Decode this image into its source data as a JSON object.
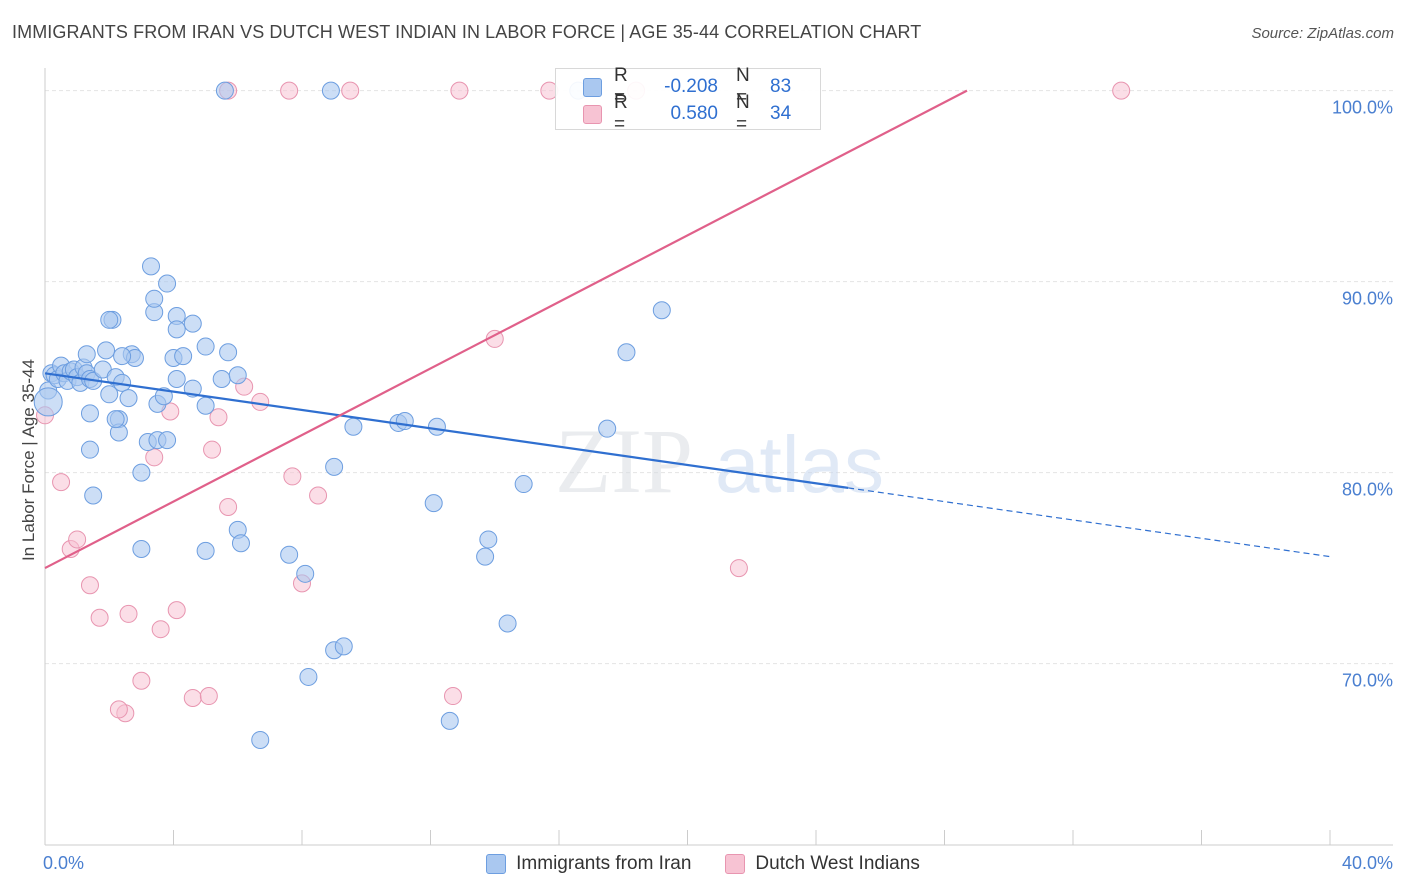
{
  "header": {
    "title": "IMMIGRANTS FROM IRAN VS DUTCH WEST INDIAN IN LABOR FORCE | AGE 35-44 CORRELATION CHART",
    "source": "Source: ZipAtlas.com"
  },
  "watermark": {
    "part1": "ZIP",
    "part2": "atlas"
  },
  "stats": {
    "iran": {
      "r_label": "R =",
      "r_value": "-0.208",
      "n_label": "N =",
      "n_value": "83"
    },
    "dutch": {
      "r_label": "R =",
      "r_value": "0.580",
      "n_label": "N =",
      "n_value": "34"
    }
  },
  "legend": {
    "iran": "Immigrants from Iran",
    "dutch": "Dutch West Indians"
  },
  "colors": {
    "iran_fill": "#aac8f0",
    "iran_stroke": "#6d9ee0",
    "iran_line": "#2f6fd0",
    "dutch_fill": "#f7c3d3",
    "dutch_stroke": "#e895b0",
    "dutch_line": "#e0608a",
    "tick_label": "#4a7fd0",
    "grid": "#e4e4e4"
  },
  "chart_data": {
    "type": "scatter",
    "title": "IMMIGRANTS FROM IRAN VS DUTCH WEST INDIAN IN LABOR FORCE | AGE 35-44 CORRELATION CHART",
    "xlabel": "",
    "ylabel": "In Labor Force | Age 35-44",
    "xlim": [
      0,
      40
    ],
    "ylim": [
      60.5,
      101.5
    ],
    "x_tick_labels": {
      "min": "0.0%",
      "max": "40.0%"
    },
    "y_ticks": [
      {
        "value": 70,
        "label": "70.0%"
      },
      {
        "value": 80,
        "label": "80.0%"
      },
      {
        "value": 90,
        "label": "90.0%"
      },
      {
        "value": 100,
        "label": "100.0%"
      }
    ],
    "grid": true,
    "legend_position": "bottom",
    "series": [
      {
        "name": "Immigrants from Iran",
        "trend": {
          "x_start": 0,
          "y_start": 85.2,
          "x_solid_end": 25,
          "x_end": 40,
          "y_end": 75.6
        },
        "points": [
          [
            0.1,
            84.3
          ],
          [
            0.2,
            85.2
          ],
          [
            0.3,
            85.1
          ],
          [
            0.4,
            84.9
          ],
          [
            0.5,
            85.6
          ],
          [
            0.6,
            85.2
          ],
          [
            0.7,
            84.8
          ],
          [
            0.8,
            85.3
          ],
          [
            0.9,
            85.4
          ],
          [
            1.0,
            85.0
          ],
          [
            1.1,
            84.7
          ],
          [
            1.2,
            85.5
          ],
          [
            1.3,
            85.2
          ],
          [
            1.4,
            84.9
          ],
          [
            1.5,
            84.8
          ],
          [
            1.8,
            85.4
          ],
          [
            2.0,
            84.1
          ],
          [
            2.2,
            85.0
          ],
          [
            2.4,
            84.7
          ],
          [
            0.1,
            83.7
          ],
          [
            1.4,
            83.1
          ],
          [
            2.3,
            82.8
          ],
          [
            2.6,
            83.9
          ],
          [
            3.5,
            83.6
          ],
          [
            2.3,
            82.1
          ],
          [
            2.2,
            82.8
          ],
          [
            1.4,
            81.2
          ],
          [
            1.5,
            78.8
          ],
          [
            3.2,
            81.6
          ],
          [
            3.0,
            80.0
          ],
          [
            4.1,
            84.9
          ],
          [
            3.7,
            84.0
          ],
          [
            4.6,
            84.4
          ],
          [
            4.0,
            86.0
          ],
          [
            5.7,
            86.3
          ],
          [
            5.5,
            84.9
          ],
          [
            6.0,
            85.1
          ],
          [
            1.3,
            86.2
          ],
          [
            2.7,
            86.2
          ],
          [
            2.1,
            88.0
          ],
          [
            2.0,
            88.0
          ],
          [
            3.4,
            88.4
          ],
          [
            3.4,
            89.1
          ],
          [
            4.1,
            88.2
          ],
          [
            4.6,
            87.8
          ],
          [
            4.1,
            87.5
          ],
          [
            3.3,
            90.8
          ],
          [
            3.8,
            89.9
          ],
          [
            1.9,
            86.4
          ],
          [
            5.0,
            86.6
          ],
          [
            2.8,
            86.0
          ],
          [
            2.4,
            86.1
          ],
          [
            5.0,
            83.5
          ],
          [
            4.3,
            86.1
          ],
          [
            3.0,
            76.0
          ],
          [
            3.5,
            81.7
          ],
          [
            3.8,
            81.7
          ],
          [
            5.0,
            75.9
          ],
          [
            6.0,
            77.0
          ],
          [
            6.1,
            76.3
          ],
          [
            7.6,
            75.7
          ],
          [
            8.1,
            74.7
          ],
          [
            9.0,
            80.3
          ],
          [
            9.6,
            82.4
          ],
          [
            11.0,
            82.6
          ],
          [
            11.2,
            82.7
          ],
          [
            12.2,
            82.4
          ],
          [
            12.1,
            78.4
          ],
          [
            14.9,
            79.4
          ],
          [
            13.8,
            76.5
          ],
          [
            14.4,
            72.1
          ],
          [
            12.6,
            67.0
          ],
          [
            13.7,
            75.6
          ],
          [
            9.0,
            70.7
          ],
          [
            9.3,
            70.9
          ],
          [
            8.2,
            69.3
          ],
          [
            6.7,
            66.0
          ],
          [
            5.6,
            100.0
          ],
          [
            8.9,
            100.0
          ],
          [
            17.5,
            82.3
          ],
          [
            19.2,
            88.5
          ],
          [
            18.1,
            86.3
          ],
          [
            16.6,
            100.0
          ]
        ]
      },
      {
        "name": "Dutch West Indians",
        "trend": {
          "x_start": 0,
          "y_start": 75.0,
          "x_end": 28.7,
          "y_end": 100.0
        },
        "points": [
          [
            0.0,
            83.0
          ],
          [
            0.5,
            79.5
          ],
          [
            0.8,
            76.0
          ],
          [
            1.0,
            76.5
          ],
          [
            1.4,
            74.1
          ],
          [
            1.7,
            72.4
          ],
          [
            2.6,
            72.6
          ],
          [
            3.6,
            71.8
          ],
          [
            4.1,
            72.8
          ],
          [
            2.5,
            67.4
          ],
          [
            2.3,
            67.6
          ],
          [
            3.0,
            69.1
          ],
          [
            4.6,
            68.2
          ],
          [
            5.1,
            68.3
          ],
          [
            3.4,
            80.8
          ],
          [
            3.9,
            83.2
          ],
          [
            5.2,
            81.2
          ],
          [
            5.7,
            78.2
          ],
          [
            5.4,
            82.9
          ],
          [
            6.2,
            84.5
          ],
          [
            6.7,
            83.7
          ],
          [
            7.7,
            79.8
          ],
          [
            8.0,
            74.2
          ],
          [
            8.5,
            78.8
          ],
          [
            9.5,
            100.0
          ],
          [
            12.9,
            100.0
          ],
          [
            15.7,
            100.0
          ],
          [
            18.4,
            100.0
          ],
          [
            21.6,
            75.0
          ],
          [
            14.0,
            87.0
          ],
          [
            12.7,
            68.3
          ],
          [
            33.5,
            100.0
          ],
          [
            5.7,
            100.0
          ],
          [
            7.6,
            100.0
          ]
        ]
      }
    ]
  }
}
